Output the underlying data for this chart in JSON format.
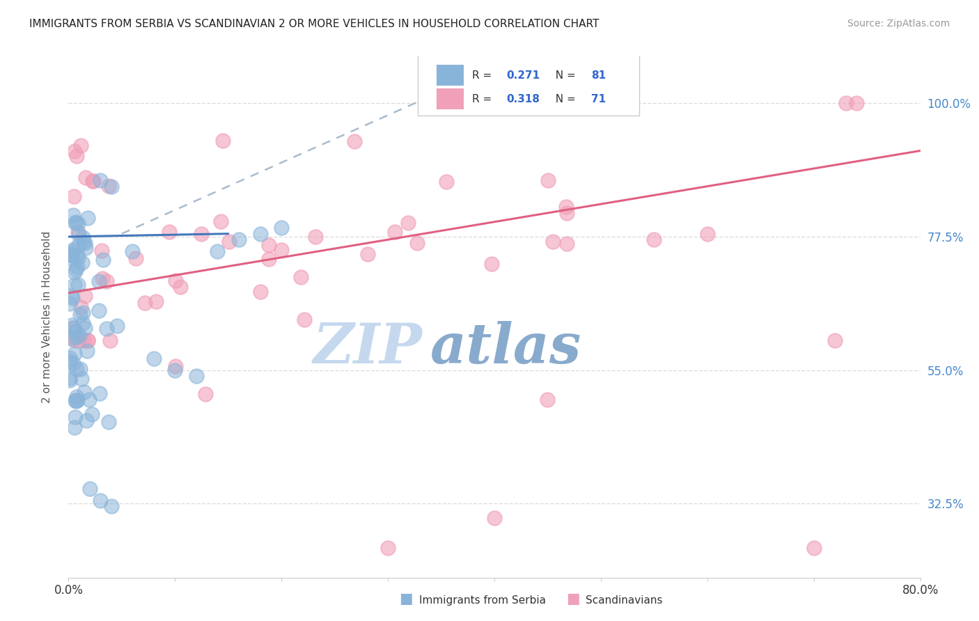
{
  "title": "IMMIGRANTS FROM SERBIA VS SCANDINAVIAN 2 OR MORE VEHICLES IN HOUSEHOLD CORRELATION CHART",
  "source": "Source: ZipAtlas.com",
  "ylabel": "2 or more Vehicles in Household",
  "ytick_values": [
    0.325,
    0.55,
    0.775,
    1.0
  ],
  "ytick_labels": [
    "32.5%",
    "55.0%",
    "77.5%",
    "100.0%"
  ],
  "legend_r1": "R = 0.271",
  "legend_n1": "N = 81",
  "legend_r2": "R = 0.318",
  "legend_n2": "N = 71",
  "color_serbia": "#89b4d9",
  "color_scandi": "#f0a0b8",
  "color_serbia_line": "#4477bb",
  "color_scandi_line": "#e06080",
  "color_dashed": "#aabbcc",
  "xlim": [
    0.0,
    0.8
  ],
  "ylim": [
    0.2,
    1.08
  ],
  "watermark_zip": "ZIP",
  "watermark_atlas": "atlas",
  "watermark_color_zip": "#c5d8ee",
  "watermark_color_atlas": "#88aacc",
  "grid_color": "#dddddd",
  "title_fontsize": 11,
  "source_fontsize": 10,
  "serbia_line": [
    0.0,
    0.775,
    0.15,
    0.78
  ],
  "scandi_line": [
    0.0,
    0.68,
    0.8,
    0.92
  ],
  "dashed_line": [
    0.05,
    0.78,
    0.35,
    1.02
  ]
}
